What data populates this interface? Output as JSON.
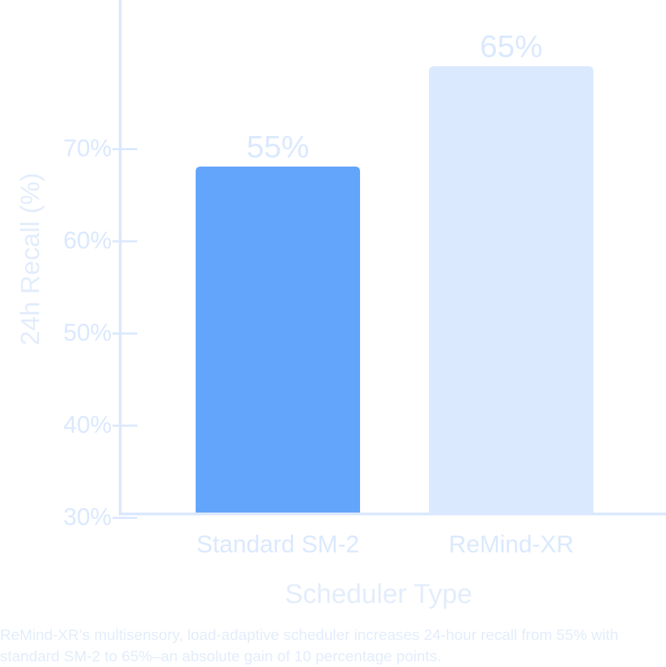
{
  "chart_data": {
    "type": "bar",
    "categories": [
      "Standard SM-2",
      "ReMind-XR"
    ],
    "values": [
      55,
      65
    ],
    "value_labels": [
      "55%",
      "65%"
    ],
    "ylabel": "24h Recall (%)",
    "xlabel": "Scheduler Type",
    "y_ticks": [
      "30%",
      "40%",
      "50%",
      "60%",
      "70%"
    ],
    "grid": false,
    "colors": {
      "bar_standard": "#62a5fa",
      "bar_remind": "#dbe9fe",
      "axis": "#dbe9fe",
      "text": "#dbe9fe"
    }
  },
  "caption": "ReMind-XR’s multisensory, load-adaptive scheduler increases 24-hour recall from 55% with standard SM-2 to 65%–an absolute gain of 10 percentage points."
}
